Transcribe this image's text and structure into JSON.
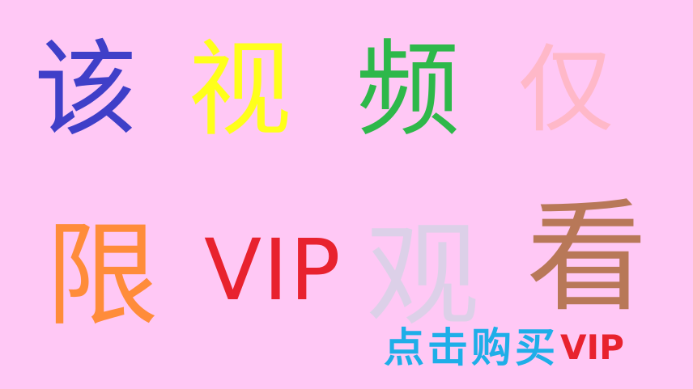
{
  "headline": {
    "chars": [
      {
        "text": "该",
        "color": "#3f3fc8"
      },
      {
        "text": "视",
        "color": "#ffff1a"
      },
      {
        "text": "频",
        "color": "#2eb84a"
      },
      {
        "text": "仅",
        "color": "#ffb8c8"
      },
      {
        "text": "限",
        "color": "#ff8c3a"
      },
      {
        "text": "VIP",
        "color": "#e8222e"
      },
      {
        "text": "观",
        "color": "#dcd0e8"
      },
      {
        "text": "看",
        "color": "#b87858"
      }
    ]
  },
  "cta": {
    "label_cn": "点击购买",
    "label_en": "VIP",
    "color_cn": "#1eaee8",
    "color_en": "#e8222e"
  }
}
